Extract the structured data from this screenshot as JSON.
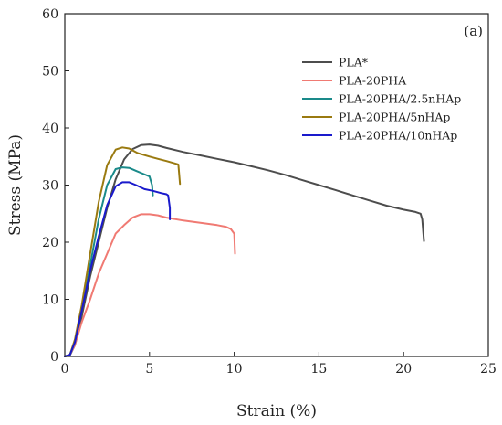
{
  "chart_data": {
    "type": "line",
    "panel_label": "(a)",
    "xlabel": "Strain (%)",
    "ylabel": "Stress (MPa)",
    "xlim": [
      0,
      25
    ],
    "ylim": [
      0,
      60
    ],
    "xticks": [
      "0",
      "5",
      "10",
      "15",
      "20",
      "25"
    ],
    "yticks": [
      "0",
      "10",
      "20",
      "30",
      "40",
      "50",
      "60"
    ],
    "grid": false,
    "legend_position": "top-right",
    "series": [
      {
        "name": "PLA*",
        "color": "#4d4d4d",
        "points": [
          [
            0,
            0
          ],
          [
            0.3,
            0.2
          ],
          [
            0.6,
            2
          ],
          [
            1,
            7
          ],
          [
            1.5,
            14
          ],
          [
            2,
            20
          ],
          [
            2.5,
            26
          ],
          [
            3,
            31
          ],
          [
            3.5,
            34.5
          ],
          [
            4,
            36.3
          ],
          [
            4.5,
            37
          ],
          [
            5,
            37.1
          ],
          [
            5.5,
            36.9
          ],
          [
            6,
            36.5
          ],
          [
            7,
            35.8
          ],
          [
            8,
            35.2
          ],
          [
            9,
            34.6
          ],
          [
            10,
            34
          ],
          [
            11,
            33.3
          ],
          [
            12,
            32.6
          ],
          [
            13,
            31.8
          ],
          [
            14,
            30.9
          ],
          [
            15,
            30
          ],
          [
            16,
            29.1
          ],
          [
            17,
            28.2
          ],
          [
            18,
            27.3
          ],
          [
            19,
            26.4
          ],
          [
            20,
            25.7
          ],
          [
            20.7,
            25.3
          ],
          [
            21,
            25
          ],
          [
            21.1,
            24
          ],
          [
            21.2,
            20.2
          ]
        ]
      },
      {
        "name": "PLA-20PHA",
        "color": "#f07a73",
        "points": [
          [
            0,
            0
          ],
          [
            0.3,
            0.3
          ],
          [
            0.6,
            2
          ],
          [
            1,
            6
          ],
          [
            1.5,
            10
          ],
          [
            2,
            14.5
          ],
          [
            2.5,
            18
          ],
          [
            3,
            21.5
          ],
          [
            3.5,
            23
          ],
          [
            4,
            24.3
          ],
          [
            4.5,
            24.9
          ],
          [
            5,
            24.9
          ],
          [
            5.5,
            24.7
          ],
          [
            6,
            24.3
          ],
          [
            7,
            23.8
          ],
          [
            8,
            23.4
          ],
          [
            9,
            23
          ],
          [
            9.5,
            22.7
          ],
          [
            9.8,
            22.3
          ],
          [
            10,
            21.5
          ],
          [
            10.05,
            18
          ]
        ]
      },
      {
        "name": "PLA-20PHA/2.5nHAp",
        "color": "#1a8a8a",
        "points": [
          [
            0,
            0
          ],
          [
            0.3,
            0.3
          ],
          [
            0.6,
            2.5
          ],
          [
            1,
            8
          ],
          [
            1.5,
            16
          ],
          [
            2,
            24
          ],
          [
            2.5,
            30
          ],
          [
            3,
            32.8
          ],
          [
            3.4,
            33.1
          ],
          [
            3.8,
            33
          ],
          [
            4.2,
            32.5
          ],
          [
            4.6,
            32
          ],
          [
            5,
            31.5
          ],
          [
            5.15,
            30
          ],
          [
            5.2,
            28.2
          ]
        ]
      },
      {
        "name": "PLA-20PHA/5nHAp",
        "color": "#9a7a10",
        "points": [
          [
            0,
            0
          ],
          [
            0.3,
            0.3
          ],
          [
            0.6,
            3
          ],
          [
            1,
            9
          ],
          [
            1.5,
            18
          ],
          [
            2,
            27
          ],
          [
            2.5,
            33.5
          ],
          [
            3,
            36.2
          ],
          [
            3.4,
            36.6
          ],
          [
            3.8,
            36.4
          ],
          [
            4.3,
            35.6
          ],
          [
            5,
            35
          ],
          [
            5.5,
            34.6
          ],
          [
            6,
            34.2
          ],
          [
            6.5,
            33.8
          ],
          [
            6.7,
            33.6
          ],
          [
            6.8,
            30.2
          ]
        ]
      },
      {
        "name": "PLA-20PHA/10nHAp",
        "color": "#1a1acc",
        "points": [
          [
            0,
            0
          ],
          [
            0.3,
            0.3
          ],
          [
            0.6,
            2.5
          ],
          [
            1,
            8
          ],
          [
            1.5,
            15
          ],
          [
            2,
            21
          ],
          [
            2.5,
            26.5
          ],
          [
            3,
            29.8
          ],
          [
            3.4,
            30.5
          ],
          [
            3.8,
            30.5
          ],
          [
            4.2,
            30
          ],
          [
            4.7,
            29.3
          ],
          [
            5.2,
            29
          ],
          [
            5.7,
            28.6
          ],
          [
            6,
            28.4
          ],
          [
            6.1,
            28.2
          ],
          [
            6.2,
            26
          ],
          [
            6.2,
            24
          ]
        ]
      }
    ]
  }
}
